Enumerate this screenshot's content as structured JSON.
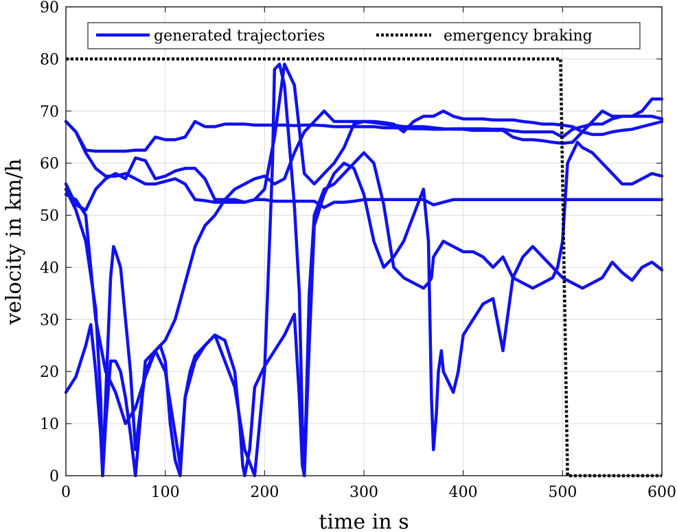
{
  "chart_data": {
    "type": "line",
    "xlabel": "time in s",
    "ylabel": "velocity in km/h",
    "xlim": [
      0,
      600
    ],
    "ylim": [
      0,
      90
    ],
    "xticks": [
      0,
      100,
      200,
      300,
      400,
      500,
      600
    ],
    "yticks": [
      0,
      10,
      20,
      30,
      40,
      50,
      60,
      70,
      80,
      90
    ],
    "grid": true,
    "legend_position": "top",
    "colors": {
      "generated": "#1111ee",
      "braking": "#000000"
    },
    "legend": {
      "generated": "generated trajectories",
      "braking": "emergency braking"
    },
    "series": [
      {
        "role": "generated",
        "x": [
          0,
          10,
          20,
          30,
          40,
          50,
          60,
          70,
          80,
          90,
          100,
          110,
          120,
          130,
          140,
          150,
          160,
          170,
          180,
          190,
          200,
          210,
          220,
          230,
          240,
          250,
          260,
          270,
          280,
          290,
          300,
          310,
          320,
          330,
          340,
          350,
          360,
          370,
          380,
          390,
          400,
          410,
          420,
          430,
          440,
          450,
          460,
          470,
          480,
          490,
          500,
          510,
          520,
          530,
          540,
          550,
          560,
          570,
          580,
          590,
          600
        ],
        "y": [
          68,
          66,
          62.5,
          62.3,
          62.3,
          62.3,
          62.3,
          62.5,
          62.5,
          65,
          64.5,
          64.5,
          65,
          68,
          67,
          67,
          67.5,
          67.5,
          67.5,
          67.3,
          67.3,
          67.3,
          67.3,
          67.2,
          67.3,
          67.3,
          67.2,
          67,
          67,
          67,
          67,
          67,
          66.8,
          66.8,
          66.7,
          66.6,
          66.6,
          66.5,
          66.5,
          66.6,
          66.6,
          66.6,
          66.6,
          66.5,
          66.5,
          66.2,
          66,
          66,
          66,
          66,
          65,
          66.5,
          67,
          67.5,
          67.5,
          68.5,
          69,
          69,
          69,
          69,
          68.5
        ]
      },
      {
        "role": "generated",
        "x": [
          0,
          10,
          20,
          30,
          40,
          50,
          60,
          70,
          80,
          90,
          100,
          110,
          120,
          130,
          140,
          150,
          160,
          170,
          180,
          190,
          200,
          210,
          220,
          230,
          240,
          250,
          260,
          270,
          280,
          290,
          300,
          310,
          320,
          330,
          340,
          350,
          360,
          370,
          380,
          390,
          400,
          410,
          420,
          430,
          440,
          450,
          460,
          470,
          480,
          490,
          500,
          510,
          520,
          530,
          540,
          550,
          560,
          570,
          580,
          590,
          600
        ],
        "y": [
          68,
          66,
          62,
          59,
          57.5,
          57.5,
          58,
          57,
          56,
          56,
          56.5,
          57,
          56,
          53,
          52.8,
          52.5,
          52.5,
          52.5,
          52.5,
          53,
          53,
          52.7,
          52.7,
          52.7,
          52.7,
          52.7,
          51.5,
          52.5,
          52.5,
          52.7,
          53,
          53,
          53,
          53,
          53,
          53,
          53,
          52,
          52.5,
          53,
          53,
          53,
          53,
          53,
          53,
          53,
          53,
          53,
          53,
          53,
          53,
          53,
          53,
          53,
          53,
          53,
          53,
          53,
          53,
          53,
          53
        ]
      },
      {
        "role": "generated",
        "x": [
          0,
          10,
          20,
          30,
          40,
          50,
          60,
          70,
          80,
          90,
          100,
          110,
          120,
          130,
          140,
          150,
          160,
          170,
          180,
          190,
          200,
          210,
          220,
          230,
          240,
          250,
          260,
          270,
          280,
          290,
          300,
          310,
          320,
          330,
          340,
          350,
          360,
          370,
          380,
          390,
          400,
          410,
          420,
          430,
          440,
          450,
          460,
          470,
          480,
          490,
          500,
          510,
          520,
          530,
          540,
          550,
          560,
          570,
          580,
          590,
          600
        ],
        "y": [
          56,
          52,
          51,
          55,
          57,
          58,
          57,
          61,
          60.5,
          57,
          57.5,
          58.5,
          59,
          59,
          57,
          53,
          53,
          53,
          52.5,
          53,
          55,
          65,
          79,
          75,
          58,
          56,
          58,
          60,
          63,
          67.5,
          68,
          67.8,
          67.5,
          67.3,
          67,
          67,
          67,
          66.8,
          66.6,
          66.5,
          66.5,
          66.3,
          66.3,
          66.3,
          66.3,
          65,
          64.5,
          64.5,
          64.3,
          64,
          63.8,
          64,
          66,
          68,
          70,
          69,
          69,
          69,
          70,
          72.3,
          72.3
        ]
      },
      {
        "role": "generated",
        "x": [
          0,
          10,
          20,
          30,
          40,
          50,
          60,
          70,
          80,
          90,
          100,
          110,
          120,
          130,
          140,
          150,
          160,
          170,
          180,
          190,
          200,
          210,
          220,
          230,
          240,
          250,
          260,
          270,
          280,
          290,
          300,
          310,
          320,
          330,
          340,
          350,
          360,
          370,
          380,
          390,
          400,
          410,
          420,
          430,
          440,
          450,
          460,
          470,
          480,
          490,
          500,
          510,
          520,
          530,
          540,
          550,
          560,
          570,
          580,
          590,
          600
        ],
        "y": [
          54,
          53,
          50,
          30,
          20,
          16,
          10,
          13,
          19,
          24,
          26,
          30,
          37,
          44,
          48,
          50,
          53,
          55,
          56,
          57,
          57.5,
          56,
          57,
          62,
          66,
          68,
          70,
          68,
          68,
          68,
          68,
          68,
          67.8,
          67.5,
          66,
          68,
          69,
          69,
          70,
          69,
          68.5,
          68.5,
          68.5,
          68.3,
          68.3,
          68.3,
          68,
          67.8,
          67.5,
          67.5,
          67.3,
          67,
          66,
          65.5,
          65.5,
          66,
          66.3,
          66.5,
          67,
          67.5,
          68
        ]
      },
      {
        "role": "generated",
        "x": [
          0,
          10,
          20,
          25,
          30,
          35,
          37,
          40,
          45,
          48,
          50,
          55,
          60,
          65,
          70,
          80,
          90,
          95,
          100,
          105,
          110,
          115,
          120,
          125,
          130,
          140,
          150,
          160,
          170,
          175,
          178,
          180,
          185,
          190,
          200,
          210,
          220,
          230,
          235,
          238,
          240,
          245,
          250,
          260,
          270,
          280,
          290,
          300,
          310,
          320,
          330,
          340,
          350,
          360,
          365,
          368,
          370,
          373,
          375,
          378,
          380,
          385,
          390,
          395,
          400,
          410,
          420,
          430,
          440,
          450,
          460,
          470,
          480,
          490,
          500,
          510,
          520,
          530,
          540,
          550,
          560,
          570,
          580,
          590,
          600
        ],
        "y": [
          16,
          19,
          25,
          29,
          20,
          8,
          0,
          15,
          38,
          44,
          43,
          40,
          30,
          20,
          5,
          20,
          24,
          25,
          22,
          10,
          3,
          0,
          15,
          20,
          23,
          25,
          27,
          26,
          20,
          10,
          2,
          0,
          5,
          17,
          21,
          24,
          27,
          31,
          15,
          2,
          0,
          25,
          48,
          54,
          58,
          60,
          59,
          54,
          45,
          40,
          42,
          45,
          50,
          55,
          45,
          15,
          5,
          12,
          20,
          24,
          20,
          18,
          16,
          20,
          27,
          30,
          33,
          34,
          24,
          38,
          42,
          44,
          42,
          40,
          38,
          37,
          36,
          37,
          38,
          41,
          39,
          37.5,
          40,
          41,
          39.5
        ]
      },
      {
        "role": "generated",
        "x": [
          0,
          10,
          20,
          30,
          35,
          37,
          40,
          45,
          50,
          55,
          60,
          65,
          70,
          80,
          90,
          100,
          110,
          115,
          120,
          130,
          140,
          150,
          160,
          170,
          180,
          190,
          200,
          205,
          208,
          210,
          215,
          220,
          230,
          235,
          238,
          240,
          245,
          250,
          260,
          270,
          280,
          290,
          300,
          310,
          320,
          330,
          340,
          350,
          360,
          365,
          368,
          370,
          380,
          390,
          400,
          410,
          420,
          430,
          440,
          450,
          460,
          470,
          480,
          490,
          495,
          500,
          505,
          510,
          515,
          520,
          530,
          540,
          550,
          560,
          570,
          580,
          590,
          600
        ],
        "y": [
          55,
          51,
          45,
          32,
          15,
          0,
          10,
          22,
          22,
          20,
          15,
          8,
          0,
          22,
          24,
          20,
          8,
          2,
          15,
          22,
          25,
          27,
          22,
          17,
          5,
          0,
          20,
          45,
          60,
          78,
          79,
          75,
          52,
          35,
          10,
          0,
          35,
          50,
          55,
          56,
          58,
          60,
          62,
          60,
          52,
          40,
          38,
          37,
          36,
          37,
          38,
          42,
          45,
          44,
          43,
          43,
          42,
          40,
          42,
          38,
          37,
          36,
          37,
          38,
          40,
          45,
          60,
          62,
          64,
          63,
          62,
          60,
          58,
          56,
          56,
          57,
          58,
          57.5
        ]
      }
    ],
    "braking": {
      "x": [
        0,
        498,
        505,
        600
      ],
      "y": [
        80,
        80,
        0,
        0
      ]
    }
  }
}
